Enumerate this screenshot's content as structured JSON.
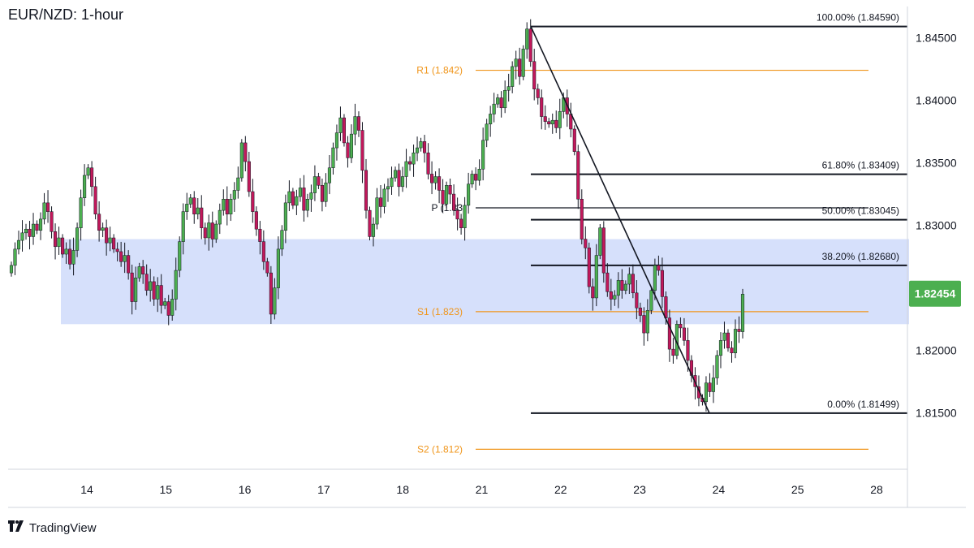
{
  "title": "EUR/NZD: 1-hour",
  "logo_text": "TradingView",
  "colors": {
    "up": "#4caf50",
    "down": "#c2185b",
    "zone": "#d6e0fb",
    "fib": "#131722",
    "pivot_orange": "#f0951a",
    "price_tag": "#4caf50"
  },
  "chart_data": {
    "type": "candlestick",
    "ylim": [
      1.8105,
      1.8475
    ],
    "x_ticks": [
      "14",
      "15",
      "16",
      "17",
      "18",
      "21",
      "22",
      "23",
      "24",
      "25",
      "28"
    ],
    "y_ticks": [
      "1.84500",
      "1.84000",
      "1.83500",
      "1.83000",
      "1.82500",
      "1.82000",
      "1.81500"
    ],
    "last_price": "1.82454",
    "support_zone": [
      1.8221,
      1.8289
    ],
    "fib_levels": [
      {
        "label": "100.00% (1.84590)",
        "value": 1.8459
      },
      {
        "label": "61.80% (1.83409)",
        "value": 1.83409
      },
      {
        "label": "50.00% (1.83045)",
        "value": 1.83045
      },
      {
        "label": "38.20% (1.82680)",
        "value": 1.8268
      },
      {
        "label": "0.00% (1.81499)",
        "value": 1.81499
      }
    ],
    "pivots": [
      {
        "label": "R1 (1.842)",
        "value": 1.8424,
        "color": "#f0951a"
      },
      {
        "label": "P (1.83",
        "value": 1.8314,
        "color": "#131722"
      },
      {
        "label": "S1 (1.823)",
        "value": 1.8231,
        "color": "#f0951a"
      },
      {
        "label": "S2 (1.812)",
        "value": 1.8121,
        "color": "#f0951a"
      }
    ],
    "trend_line": {
      "from_value": 1.8459,
      "to_value": 1.81499
    },
    "candle_closes": [
      1.8268,
      1.8281,
      1.8288,
      1.8294,
      1.8297,
      1.8291,
      1.8301,
      1.8296,
      1.8305,
      1.8318,
      1.8311,
      1.8295,
      1.8283,
      1.829,
      1.8277,
      1.8281,
      1.8269,
      1.828,
      1.8298,
      1.8322,
      1.834,
      1.8346,
      1.8331,
      1.8309,
      1.8296,
      1.8298,
      1.8286,
      1.829,
      1.8281,
      1.8279,
      1.8271,
      1.8276,
      1.8262,
      1.8239,
      1.8258,
      1.8267,
      1.8261,
      1.8248,
      1.8255,
      1.8241,
      1.8252,
      1.8236,
      1.8239,
      1.8228,
      1.8241,
      1.8264,
      1.8287,
      1.8311,
      1.8317,
      1.8322,
      1.8309,
      1.8314,
      1.8298,
      1.829,
      1.8302,
      1.8289,
      1.8301,
      1.8312,
      1.8321,
      1.8309,
      1.8321,
      1.8328,
      1.8338,
      1.8366,
      1.8351,
      1.8327,
      1.8311,
      1.8297,
      1.8287,
      1.8271,
      1.8262,
      1.8229,
      1.825,
      1.8281,
      1.8296,
      1.8318,
      1.8327,
      1.8316,
      1.8323,
      1.833,
      1.8312,
      1.8321,
      1.8326,
      1.8339,
      1.8332,
      1.8319,
      1.8334,
      1.8346,
      1.8362,
      1.8374,
      1.8386,
      1.8366,
      1.8354,
      1.8373,
      1.8387,
      1.8376,
      1.8344,
      1.8312,
      1.8291,
      1.8301,
      1.8322,
      1.8315,
      1.8329,
      1.8331,
      1.8338,
      1.8344,
      1.8331,
      1.8339,
      1.8351,
      1.8349,
      1.8358,
      1.8362,
      1.8367,
      1.8358,
      1.8341,
      1.8334,
      1.8339,
      1.8328,
      1.8317,
      1.8332,
      1.8325,
      1.8312,
      1.8305,
      1.8298,
      1.8316,
      1.8333,
      1.8341,
      1.8336,
      1.8345,
      1.8368,
      1.8381,
      1.8389,
      1.8397,
      1.8402,
      1.8394,
      1.8408,
      1.8411,
      1.8427,
      1.8433,
      1.8419,
      1.8441,
      1.8457,
      1.8431,
      1.8409,
      1.8402,
      1.8387,
      1.8383,
      1.8381,
      1.8384,
      1.8378,
      1.8391,
      1.8402,
      1.8389,
      1.8377,
      1.8359,
      1.8321,
      1.8289,
      1.8282,
      1.8251,
      1.8242,
      1.8276,
      1.8298,
      1.8262,
      1.8247,
      1.8241,
      1.8244,
      1.8256,
      1.8248,
      1.8253,
      1.8261,
      1.8246,
      1.8234,
      1.8228,
      1.8214,
      1.8232,
      1.8248,
      1.8268,
      1.8264,
      1.8243,
      1.8226,
      1.8201,
      1.8196,
      1.8221,
      1.8218,
      1.8208,
      1.8192,
      1.818,
      1.8171,
      1.8162,
      1.8159,
      1.8174,
      1.8167,
      1.8178,
      1.8196,
      1.8208,
      1.8214,
      1.8202,
      1.8198,
      1.8217,
      1.8215,
      1.8245
    ]
  }
}
